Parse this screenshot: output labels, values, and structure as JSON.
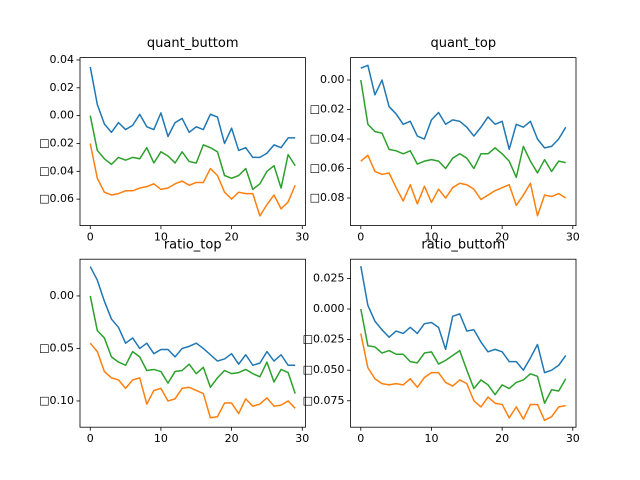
{
  "chart_data": [
    {
      "type": "line",
      "title": "quant_buttom",
      "x": [
        0,
        1,
        2,
        3,
        4,
        5,
        6,
        7,
        8,
        9,
        10,
        11,
        12,
        13,
        14,
        15,
        16,
        17,
        18,
        19,
        20,
        21,
        22,
        23,
        24,
        25,
        26,
        27,
        28,
        29
      ],
      "xlim": [
        -1.45,
        30.45
      ],
      "xticks": [
        0,
        10,
        20,
        30
      ],
      "ylim": [
        -0.079,
        0.0417
      ],
      "yticks": [
        {
          "value": -0.06,
          "label": "□0.06"
        },
        {
          "value": -0.04,
          "label": "□0.04"
        },
        {
          "value": -0.02,
          "label": "□0.02"
        },
        {
          "value": 0,
          "label": "0.00"
        },
        0.02,
        0.04
      ],
      "series": [
        {
          "color": "#1f77b4",
          "values": [
            0.035,
            0.008,
            -0.006,
            -0.012,
            -0.005,
            -0.01,
            -0.007,
            0.001,
            -0.008,
            -0.01,
            0.002,
            -0.015,
            -0.005,
            -0.002,
            -0.012,
            -0.008,
            -0.01,
            0.001,
            -0.001,
            -0.02,
            -0.009,
            -0.025,
            -0.023,
            -0.03,
            -0.03,
            -0.027,
            -0.021,
            -0.023,
            -0.016,
            -0.016
          ]
        },
        {
          "color": "#ff7f0e",
          "values": [
            -0.02,
            -0.045,
            -0.055,
            -0.057,
            -0.056,
            -0.054,
            -0.054,
            -0.052,
            -0.051,
            -0.049,
            -0.053,
            -0.052,
            -0.049,
            -0.047,
            -0.05,
            -0.048,
            -0.048,
            -0.038,
            -0.043,
            -0.055,
            -0.06,
            -0.055,
            -0.056,
            -0.056,
            -0.072,
            -0.064,
            -0.057,
            -0.067,
            -0.062,
            -0.05
          ]
        },
        {
          "color": "#2ca02c",
          "values": [
            0.0,
            -0.025,
            -0.031,
            -0.035,
            -0.03,
            -0.032,
            -0.03,
            -0.031,
            -0.023,
            -0.034,
            -0.026,
            -0.029,
            -0.034,
            -0.026,
            -0.033,
            -0.034,
            -0.021,
            -0.023,
            -0.026,
            -0.043,
            -0.045,
            -0.043,
            -0.038,
            -0.053,
            -0.049,
            -0.04,
            -0.036,
            -0.052,
            -0.028,
            -0.036
          ]
        }
      ]
    },
    {
      "type": "line",
      "title": "quant_top",
      "x": [
        0,
        1,
        2,
        3,
        4,
        5,
        6,
        7,
        8,
        9,
        10,
        11,
        12,
        13,
        14,
        15,
        16,
        17,
        18,
        19,
        20,
        21,
        22,
        23,
        24,
        25,
        26,
        27,
        28,
        29
      ],
      "xlim": [
        -1.45,
        30.45
      ],
      "xticks": [
        0,
        10,
        20,
        30
      ],
      "ylim": [
        -0.0987,
        0.0152
      ],
      "yticks": [
        {
          "value": -0.08,
          "label": "□0.08"
        },
        {
          "value": -0.06,
          "label": "□0.06"
        },
        {
          "value": -0.04,
          "label": "□0.04"
        },
        {
          "value": -0.02,
          "label": "□0.02"
        },
        {
          "value": 0,
          "label": "0.00"
        }
      ],
      "series": [
        {
          "color": "#1f77b4",
          "values": [
            0.008,
            0.01,
            -0.01,
            0.0,
            -0.018,
            -0.023,
            -0.03,
            -0.028,
            -0.038,
            -0.04,
            -0.027,
            -0.022,
            -0.03,
            -0.027,
            -0.028,
            -0.032,
            -0.038,
            -0.032,
            -0.025,
            -0.03,
            -0.028,
            -0.047,
            -0.03,
            -0.032,
            -0.028,
            -0.04,
            -0.046,
            -0.045,
            -0.04,
            -0.032
          ]
        },
        {
          "color": "#ff7f0e",
          "values": [
            -0.055,
            -0.051,
            -0.062,
            -0.064,
            -0.063,
            -0.073,
            -0.082,
            -0.071,
            -0.084,
            -0.072,
            -0.083,
            -0.074,
            -0.08,
            -0.073,
            -0.07,
            -0.071,
            -0.074,
            -0.081,
            -0.078,
            -0.075,
            -0.073,
            -0.071,
            -0.085,
            -0.078,
            -0.07,
            -0.092,
            -0.078,
            -0.079,
            -0.077,
            -0.08
          ]
        },
        {
          "color": "#2ca02c",
          "values": [
            0.0,
            -0.03,
            -0.035,
            -0.036,
            -0.047,
            -0.048,
            -0.05,
            -0.048,
            -0.057,
            -0.055,
            -0.054,
            -0.055,
            -0.06,
            -0.053,
            -0.05,
            -0.053,
            -0.06,
            -0.05,
            -0.05,
            -0.046,
            -0.05,
            -0.055,
            -0.066,
            -0.045,
            -0.055,
            -0.063,
            -0.054,
            -0.062,
            -0.055,
            -0.056
          ]
        }
      ]
    },
    {
      "type": "line",
      "title": "ratio_top",
      "x": [
        0,
        1,
        2,
        3,
        4,
        5,
        6,
        7,
        8,
        9,
        10,
        11,
        12,
        13,
        14,
        15,
        16,
        17,
        18,
        19,
        20,
        21,
        22,
        23,
        24,
        25,
        26,
        27,
        28,
        29
      ],
      "xlim": [
        -1.45,
        30.45
      ],
      "xticks": [
        0,
        10,
        20,
        30
      ],
      "ylim": [
        -0.125,
        0.035
      ],
      "yticks": [
        {
          "value": -0.1,
          "label": "□0.10"
        },
        {
          "value": -0.05,
          "label": "□0.05"
        },
        {
          "value": 0,
          "label": "0.00"
        }
      ],
      "series": [
        {
          "color": "#1f77b4",
          "values": [
            0.028,
            0.015,
            -0.005,
            -0.022,
            -0.03,
            -0.045,
            -0.04,
            -0.05,
            -0.045,
            -0.055,
            -0.051,
            -0.051,
            -0.058,
            -0.05,
            -0.048,
            -0.045,
            -0.05,
            -0.056,
            -0.062,
            -0.06,
            -0.055,
            -0.065,
            -0.056,
            -0.066,
            -0.064,
            -0.053,
            -0.062,
            -0.056,
            -0.066,
            -0.066
          ]
        },
        {
          "color": "#ff7f0e",
          "values": [
            -0.045,
            -0.053,
            -0.072,
            -0.078,
            -0.08,
            -0.088,
            -0.08,
            -0.078,
            -0.103,
            -0.09,
            -0.088,
            -0.1,
            -0.098,
            -0.088,
            -0.087,
            -0.09,
            -0.093,
            -0.116,
            -0.115,
            -0.102,
            -0.102,
            -0.112,
            -0.098,
            -0.105,
            -0.103,
            -0.097,
            -0.105,
            -0.104,
            -0.1,
            -0.107
          ]
        },
        {
          "color": "#2ca02c",
          "values": [
            0.0,
            -0.033,
            -0.04,
            -0.058,
            -0.063,
            -0.066,
            -0.053,
            -0.058,
            -0.071,
            -0.07,
            -0.072,
            -0.083,
            -0.072,
            -0.071,
            -0.065,
            -0.074,
            -0.068,
            -0.087,
            -0.078,
            -0.071,
            -0.074,
            -0.073,
            -0.07,
            -0.074,
            -0.077,
            -0.063,
            -0.082,
            -0.07,
            -0.073,
            -0.093
          ]
        }
      ]
    },
    {
      "type": "line",
      "title": "ratio_buttom",
      "x": [
        0,
        1,
        2,
        3,
        4,
        5,
        6,
        7,
        8,
        9,
        10,
        11,
        12,
        13,
        14,
        15,
        16,
        17,
        18,
        19,
        20,
        21,
        22,
        23,
        24,
        25,
        26,
        27,
        28,
        29
      ],
      "xlim": [
        -1.45,
        30.45
      ],
      "xticks": [
        0,
        10,
        20,
        30
      ],
      "ylim": [
        -0.0966,
        0.0407
      ],
      "yticks": [
        {
          "value": -0.075,
          "label": "□0.075"
        },
        {
          "value": -0.05,
          "label": "□0.050"
        },
        {
          "value": -0.025,
          "label": "□0.025"
        },
        {
          "value": 0,
          "label": "0.000"
        },
        0.025
      ],
      "series": [
        {
          "color": "#1f77b4",
          "values": [
            0.035,
            0.003,
            -0.01,
            -0.017,
            -0.023,
            -0.018,
            -0.02,
            -0.015,
            -0.02,
            -0.012,
            -0.011,
            -0.015,
            -0.033,
            -0.006,
            -0.004,
            -0.018,
            -0.017,
            -0.027,
            -0.035,
            -0.033,
            -0.035,
            -0.043,
            -0.043,
            -0.05,
            -0.04,
            -0.029,
            -0.052,
            -0.05,
            -0.046,
            -0.038
          ]
        },
        {
          "color": "#ff7f0e",
          "values": [
            -0.02,
            -0.048,
            -0.057,
            -0.061,
            -0.062,
            -0.061,
            -0.062,
            -0.057,
            -0.064,
            -0.056,
            -0.052,
            -0.052,
            -0.06,
            -0.063,
            -0.058,
            -0.061,
            -0.075,
            -0.08,
            -0.072,
            -0.077,
            -0.078,
            -0.089,
            -0.08,
            -0.09,
            -0.078,
            -0.078,
            -0.091,
            -0.088,
            -0.08,
            -0.079
          ]
        },
        {
          "color": "#2ca02c",
          "values": [
            0.0,
            -0.03,
            -0.031,
            -0.036,
            -0.034,
            -0.037,
            -0.037,
            -0.043,
            -0.044,
            -0.036,
            -0.035,
            -0.045,
            -0.042,
            -0.038,
            -0.034,
            -0.05,
            -0.065,
            -0.058,
            -0.062,
            -0.07,
            -0.062,
            -0.065,
            -0.06,
            -0.058,
            -0.053,
            -0.055,
            -0.077,
            -0.066,
            -0.067,
            -0.057
          ]
        }
      ]
    }
  ]
}
